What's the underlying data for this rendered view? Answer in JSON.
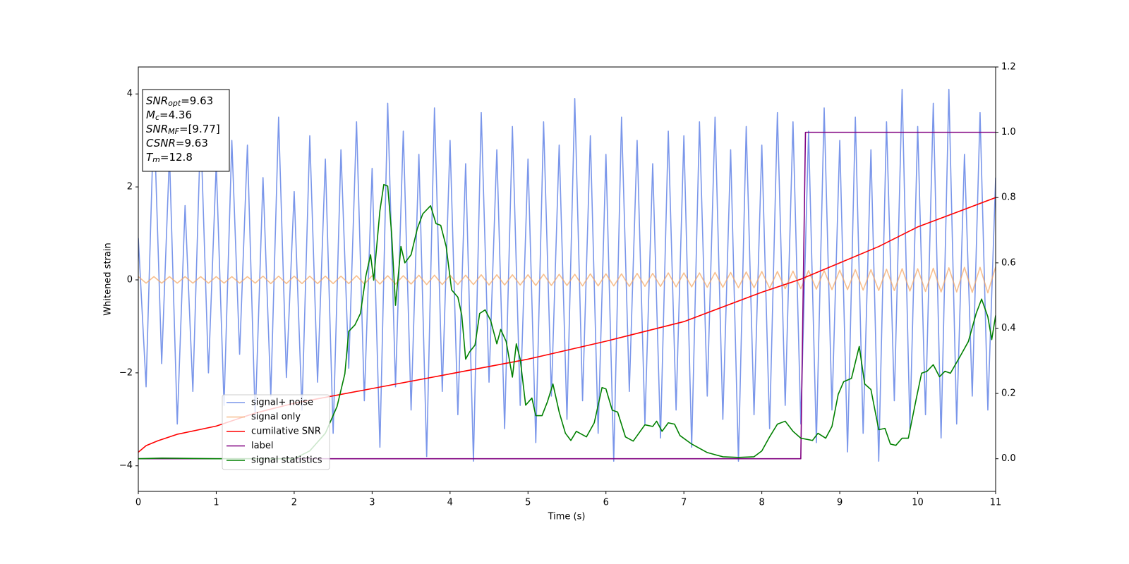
{
  "chart_data": {
    "type": "line",
    "xlabel": "Time (s)",
    "ylabel": "Whitened strain",
    "xlim": [
      0,
      11
    ],
    "ylim": [
      -4.55,
      4.58
    ],
    "y2lim": [
      -0.1,
      1.2
    ],
    "xticks": [
      0,
      1,
      2,
      3,
      4,
      5,
      6,
      7,
      8,
      9,
      10,
      11
    ],
    "yticks": [
      {
        "value": -4,
        "label": "−4"
      },
      {
        "value": -2,
        "label": "−2"
      },
      0,
      2,
      4
    ],
    "y2ticks": [
      {
        "value": 0,
        "label": "0.0"
      },
      0.2,
      0.4,
      0.6,
      0.8,
      {
        "value": 1,
        "label": "1.0"
      },
      1.2
    ],
    "legend_loc": "lower left",
    "annotations": [
      {
        "base": "SNR",
        "sub": "opt",
        "rest": "=9.63"
      },
      {
        "base": "M",
        "sub": "c",
        "rest": "=4.36"
      },
      {
        "base": "SNR",
        "sub": "MF",
        "rest": "=[9.77]"
      },
      {
        "base": "CSNR",
        "rest": "=9.63"
      },
      {
        "base": "T",
        "sub": "m",
        "rest": "=12.8"
      }
    ],
    "x": [
      0,
      0.1,
      0.2,
      0.3,
      0.4,
      0.5,
      0.6,
      0.7,
      0.8,
      0.9,
      1,
      1.1,
      1.2,
      1.3,
      1.4,
      1.5,
      1.6,
      1.7,
      1.8,
      1.9,
      2,
      2.1,
      2.2,
      2.3,
      2.4,
      2.5,
      2.6,
      2.7,
      2.8,
      2.9,
      3,
      3.1,
      3.2,
      3.3,
      3.4,
      3.5,
      3.6,
      3.7,
      3.8,
      3.9,
      4,
      4.1,
      4.2,
      4.3,
      4.4,
      4.5,
      4.6,
      4.7,
      4.8,
      4.9,
      5,
      5.1,
      5.2,
      5.3,
      5.4,
      5.5,
      5.6,
      5.7,
      5.8,
      5.9,
      6,
      6.1,
      6.2,
      6.3,
      6.4,
      6.5,
      6.6,
      6.7,
      6.8,
      6.9,
      7,
      7.1,
      7.2,
      7.3,
      7.4,
      7.5,
      7.6,
      7.7,
      7.8,
      7.9,
      8,
      8.1,
      8.2,
      8.3,
      8.4,
      8.5,
      8.6,
      8.7,
      8.8,
      8.9,
      9,
      9.1,
      9.2,
      9.3,
      9.4,
      9.5,
      9.6,
      9.7,
      9.8,
      9.9,
      10,
      10.1,
      10.2,
      10.3,
      10.4,
      10.5,
      10.6,
      10.7,
      10.8,
      10.9,
      11
    ],
    "series": [
      {
        "name": "signal+ noise",
        "color": "#4169e1",
        "opacity": 0.7,
        "axis": "y",
        "values": [
          0.9,
          -2.3,
          3.6,
          -1.8,
          2.7,
          -3.1,
          1.6,
          -2.4,
          3.3,
          -2.0,
          2.5,
          -2.7,
          3.0,
          -1.6,
          2.9,
          -3.0,
          2.2,
          -2.5,
          3.5,
          -2.1,
          1.9,
          -2.8,
          3.1,
          -2.2,
          2.6,
          -3.3,
          2.8,
          -1.9,
          3.4,
          -2.6,
          2.4,
          -3.6,
          3.8,
          -2.3,
          3.2,
          -2.8,
          2.7,
          -3.8,
          3.7,
          -2.4,
          3.0,
          -2.9,
          2.5,
          -3.9,
          3.6,
          -2.2,
          2.8,
          -3.2,
          3.3,
          -2.7,
          2.6,
          -3.5,
          3.4,
          -2.5,
          2.9,
          -3.0,
          3.9,
          -2.6,
          3.1,
          -3.3,
          2.7,
          -3.9,
          3.5,
          -2.4,
          3.0,
          -3.1,
          2.5,
          -3.4,
          3.2,
          -2.8,
          3.1,
          -3.6,
          3.4,
          -2.5,
          3.5,
          -3.0,
          2.8,
          -3.9,
          3.3,
          -2.9,
          2.9,
          -3.2,
          3.6,
          -2.7,
          3.4,
          -3.1,
          3.2,
          -3.5,
          3.7,
          -2.8,
          3.0,
          -3.7,
          3.5,
          -3.3,
          2.8,
          -3.9,
          3.4,
          -2.6,
          4.1,
          -3.2,
          3.3,
          -2.9,
          3.8,
          -3.4,
          4.1,
          -3.1,
          2.7,
          -2.5,
          3.6,
          -2.8,
          2.2
        ]
      },
      {
        "name": "signal only",
        "color": "#f4a460",
        "opacity": 0.7,
        "axis": "y",
        "values": [
          0.07,
          -0.07,
          0.07,
          -0.07,
          0.07,
          -0.07,
          0.07,
          -0.07,
          0.07,
          -0.07,
          0.07,
          -0.07,
          0.07,
          -0.07,
          0.07,
          -0.07,
          0.08,
          -0.08,
          0.08,
          -0.08,
          0.08,
          -0.08,
          0.08,
          -0.08,
          0.08,
          -0.08,
          0.08,
          -0.08,
          0.09,
          -0.09,
          0.09,
          -0.09,
          0.09,
          -0.09,
          0.09,
          -0.09,
          0.1,
          -0.1,
          0.1,
          -0.1,
          0.1,
          -0.1,
          0.1,
          -0.1,
          0.11,
          -0.11,
          0.11,
          -0.11,
          0.11,
          -0.11,
          0.11,
          -0.12,
          0.12,
          -0.12,
          0.12,
          -0.12,
          0.12,
          -0.13,
          0.13,
          -0.13,
          0.13,
          -0.13,
          0.13,
          -0.14,
          0.14,
          -0.14,
          0.14,
          -0.14,
          0.15,
          -0.15,
          0.15,
          -0.15,
          0.15,
          -0.16,
          0.16,
          -0.16,
          0.16,
          -0.17,
          0.17,
          -0.17,
          0.18,
          -0.18,
          0.18,
          -0.19,
          0.19,
          -0.19,
          0.2,
          -0.2,
          0.2,
          -0.21,
          0.21,
          -0.21,
          0.22,
          -0.22,
          0.22,
          -0.23,
          0.23,
          -0.23,
          0.24,
          -0.24,
          0.24,
          -0.25,
          0.25,
          -0.26,
          0.26,
          -0.26,
          0.27,
          -0.27,
          0.27,
          -0.28,
          0.28
        ]
      },
      {
        "name": "cumilative SNR",
        "color": "#ff0000",
        "opacity": 1,
        "axis": "y2",
        "x": [
          0,
          0.1,
          0.25,
          0.5,
          1,
          1.5,
          2,
          3,
          4,
          5,
          6,
          7,
          8,
          8.5,
          9,
          9.5,
          10,
          10.5,
          11
        ],
        "values": [
          0.02,
          0.04,
          0.055,
          0.075,
          0.1,
          0.14,
          0.17,
          0.215,
          0.26,
          0.305,
          0.36,
          0.42,
          0.51,
          0.55,
          0.6,
          0.65,
          0.71,
          0.755,
          0.8
        ]
      },
      {
        "name": "label",
        "color": "#800080",
        "opacity": 1,
        "axis": "y2",
        "x": [
          0,
          8.5,
          8.56,
          11
        ],
        "values": [
          0,
          0,
          1,
          1
        ]
      },
      {
        "name": "signal statistics",
        "color": "#008000",
        "opacity": 1,
        "axis": "y2",
        "x": [
          0,
          0.3,
          1,
          2,
          2.2,
          2.4,
          2.55,
          2.65,
          2.7,
          2.78,
          2.85,
          2.92,
          2.98,
          3.02,
          3.1,
          3.15,
          3.2,
          3.25,
          3.3,
          3.37,
          3.42,
          3.5,
          3.58,
          3.65,
          3.75,
          3.82,
          3.88,
          3.95,
          4.02,
          4.1,
          4.15,
          4.2,
          4.25,
          4.32,
          4.38,
          4.45,
          4.52,
          4.6,
          4.65,
          4.72,
          4.8,
          4.85,
          4.9,
          4.97,
          5.05,
          5.1,
          5.18,
          5.25,
          5.32,
          5.4,
          5.48,
          5.55,
          5.62,
          5.75,
          5.85,
          5.95,
          6.0,
          6.08,
          6.15,
          6.25,
          6.35,
          6.5,
          6.6,
          6.65,
          6.72,
          6.8,
          6.88,
          6.95,
          7.1,
          7.3,
          7.5,
          7.7,
          7.9,
          8.0,
          8.1,
          8.2,
          8.3,
          8.4,
          8.5,
          8.65,
          8.72,
          8.82,
          8.9,
          8.98,
          9.05,
          9.15,
          9.25,
          9.32,
          9.4,
          9.5,
          9.58,
          9.65,
          9.72,
          9.8,
          9.88,
          9.98,
          10.05,
          10.12,
          10.2,
          10.28,
          10.35,
          10.42,
          10.55,
          10.65,
          10.75,
          10.82,
          10.9,
          10.95,
          11.0
        ],
        "values": [
          0,
          0.002,
          0,
          0,
          0.024,
          0.078,
          0.16,
          0.26,
          0.39,
          0.41,
          0.445,
          0.56,
          0.625,
          0.547,
          0.76,
          0.84,
          0.835,
          0.69,
          0.47,
          0.65,
          0.6,
          0.625,
          0.705,
          0.75,
          0.775,
          0.72,
          0.715,
          0.65,
          0.517,
          0.495,
          0.44,
          0.305,
          0.327,
          0.348,
          0.445,
          0.456,
          0.424,
          0.352,
          0.396,
          0.359,
          0.25,
          0.352,
          0.305,
          0.164,
          0.186,
          0.132,
          0.132,
          0.175,
          0.229,
          0.143,
          0.078,
          0.056,
          0.084,
          0.067,
          0.11,
          0.218,
          0.214,
          0.149,
          0.143,
          0.067,
          0.054,
          0.104,
          0.099,
          0.115,
          0.084,
          0.11,
          0.106,
          0.071,
          0.045,
          0.019,
          0.006,
          0.004,
          0.006,
          0.024,
          0.067,
          0.106,
          0.115,
          0.084,
          0.063,
          0.056,
          0.078,
          0.063,
          0.099,
          0.197,
          0.236,
          0.246,
          0.344,
          0.229,
          0.212,
          0.089,
          0.093,
          0.045,
          0.041,
          0.063,
          0.063,
          0.182,
          0.262,
          0.268,
          0.288,
          0.251,
          0.268,
          0.262,
          0.316,
          0.359,
          0.445,
          0.489,
          0.435,
          0.365,
          0.439
        ]
      }
    ]
  }
}
